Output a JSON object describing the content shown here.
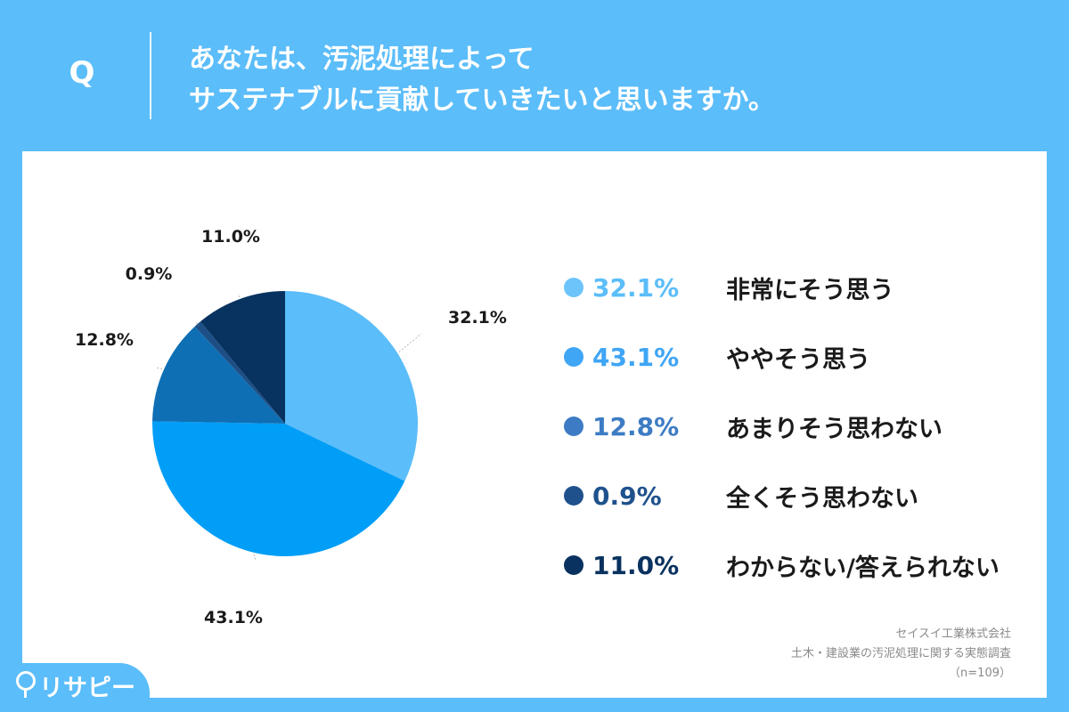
{
  "header": {
    "q_mark": "Q",
    "question_line1": "あなたは、汚泥処理によって",
    "question_line2": "サステナブルに貢献していきたいと思いますか。"
  },
  "chart_data": {
    "type": "pie",
    "categories": [
      "非常にそう思う",
      "ややそう思う",
      "あまりそう思わない",
      "全くそう思わない",
      "わからない/答えられない"
    ],
    "values": [
      32.1,
      43.1,
      12.8,
      0.9,
      11.0
    ],
    "value_labels": [
      "32.1%",
      "43.1%",
      "12.8%",
      "0.9%",
      "11.0%"
    ],
    "colors": [
      "#5bbdf9",
      "#009ef7",
      "#0e6fb5",
      "#1d4f86",
      "#083360"
    ],
    "legend_colors": [
      "#6cc4fb",
      "#3fa5f5",
      "#3d7cc4",
      "#1f528d",
      "#0a3260"
    ],
    "value_colors": [
      "#5bbdf9",
      "#3fa5f5",
      "#3d7cc4",
      "#1f528d",
      "#0a3260"
    ],
    "legend_position": "right"
  },
  "source": {
    "line1": "セイスイ工業株式会社",
    "line2": "土木・建設業の汚泥処理に関する実態調査",
    "line3": "（n=109）"
  },
  "logo": {
    "text": "リサピー",
    "icon": "pin-icon"
  }
}
